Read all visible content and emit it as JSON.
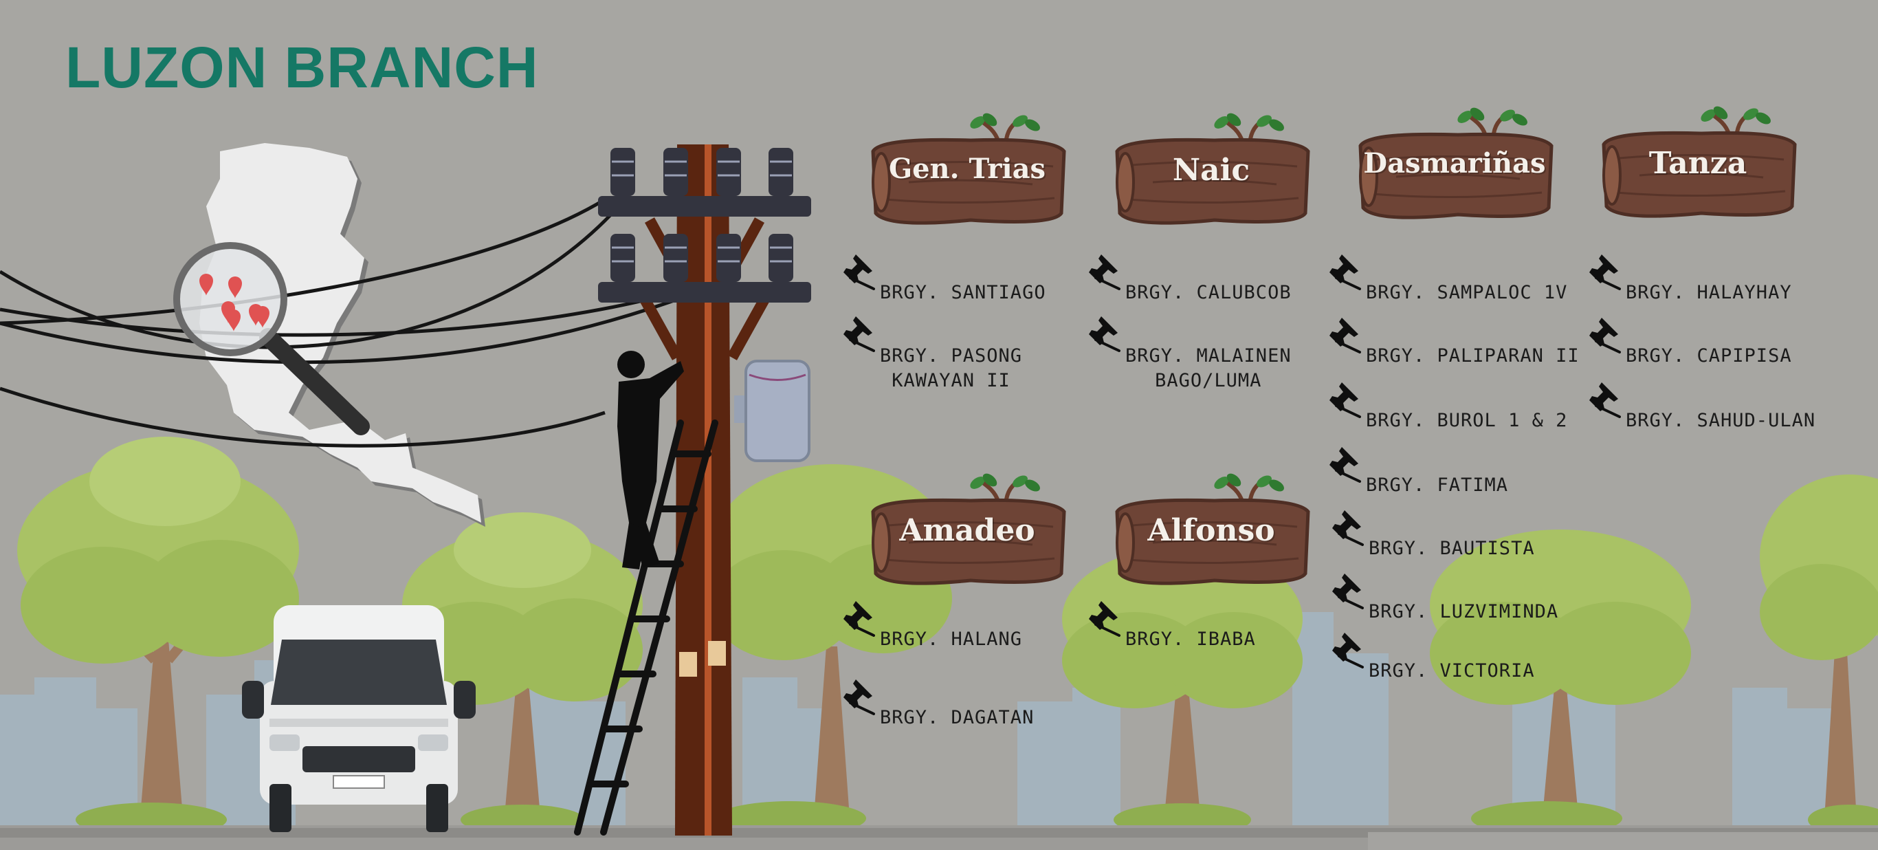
{
  "page_title": "LUZON BRANCH",
  "colors": {
    "background": "#a7a6a2",
    "title": "#157865",
    "sign_wood": "#6e4436",
    "sign_text": "#f4f0ea",
    "map_pin": "#e05252",
    "pole": "#5a2510",
    "crossarm": "#33343f"
  },
  "icons": {
    "pushpin": "pushpin-icon",
    "map_pin": "map-pin-icon",
    "magnifier": "magnifying-glass-icon"
  },
  "branches": [
    {
      "name": "Gen. Trias",
      "barangays": [
        "BRGY. SANTIAGO",
        "BRGY. PASONG\nKAWAYAN II"
      ]
    },
    {
      "name": "Naic",
      "barangays": [
        "BRGY. CALUBCOB",
        "BRGY. MALAINEN\nBAGO/LUMA"
      ]
    },
    {
      "name": "Dasmariñas",
      "barangays": [
        "BRGY. SAMPALOC 1V",
        "BRGY. PALIPARAN II",
        "BRGY. BUROL 1 & 2",
        "BRGY. FATIMA",
        "BRGY. BAUTISTA",
        "BRGY. LUZVIMINDA",
        "BRGY. VICTORIA"
      ]
    },
    {
      "name": "Tanza",
      "barangays": [
        "BRGY. HALAYHAY",
        "BRGY. CAPIPISA",
        "BRGY. SAHUD-ULAN"
      ]
    },
    {
      "name": "Amadeo",
      "barangays": [
        "BRGY. HALANG",
        "BRGY. DAGATAN"
      ]
    },
    {
      "name": "Alfonso",
      "barangays": [
        "BRGY. IBABA"
      ]
    }
  ]
}
